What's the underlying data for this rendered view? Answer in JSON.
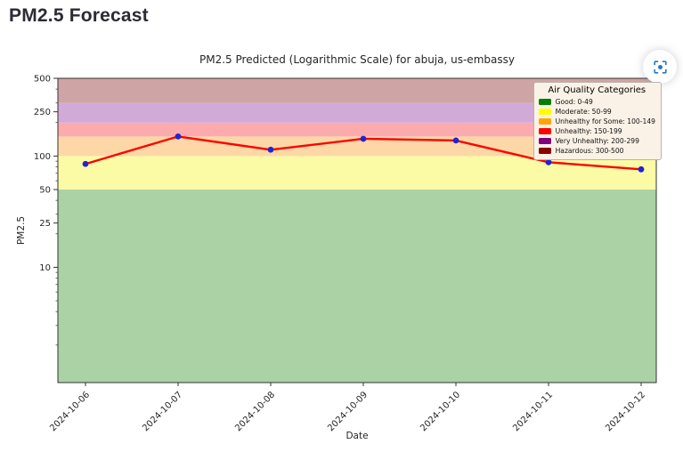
{
  "page": {
    "heading": "PM2.5 Forecast"
  },
  "controls": {
    "fullscreen_button": "focus-view",
    "icon_color": "#2878be"
  },
  "chart_data": {
    "type": "line",
    "title": "PM2.5 Predicted (Logarithmic Scale) for abuja, us-embassy",
    "xlabel": "Date",
    "ylabel": "PM2.5",
    "yscale": "log",
    "ylim": [
      0.92,
      500
    ],
    "yticks": [
      500,
      250,
      100,
      50,
      25,
      10
    ],
    "grid": false,
    "categories": [
      "2024-10-06",
      "2024-10-07",
      "2024-10-08",
      "2024-10-09",
      "2024-10-10",
      "2024-10-11",
      "2024-10-12"
    ],
    "series": [
      {
        "name": "PM2.5 predicted",
        "values": [
          85,
          150,
          114,
          143,
          138,
          88,
          76
        ],
        "line_color": "#ff0000",
        "marker_color": "#2424cf"
      }
    ],
    "bands": [
      {
        "label": "Good",
        "from": 0.92,
        "to": 50,
        "fill": "#aad2a5"
      },
      {
        "label": "Moderate",
        "from": 50,
        "to": 100,
        "fill": "#fbfba6"
      },
      {
        "label": "Unhealthy for Some",
        "from": 100,
        "to": 150,
        "fill": "#fdd8a6"
      },
      {
        "label": "Unhealthy",
        "from": 150,
        "to": 200,
        "fill": "#fbabad"
      },
      {
        "label": "Very Unhealthy",
        "from": 200,
        "to": 300,
        "fill": "#d2aad8"
      },
      {
        "label": "Hazardous",
        "from": 300,
        "to": 500,
        "fill": "#cfa4a5"
      }
    ],
    "legend": {
      "title": "Air Quality Categories",
      "position": "upper right",
      "entries": [
        {
          "label": "Good: 0-49",
          "swatch": "#008000"
        },
        {
          "label": "Moderate: 50-99",
          "swatch": "#ffff00"
        },
        {
          "label": "Unhealthy for Some: 100-149",
          "swatch": "#ffa500"
        },
        {
          "label": "Unhealthy: 150-199",
          "swatch": "#ff0000"
        },
        {
          "label": "Very Unhealthy: 200-299",
          "swatch": "#800080"
        },
        {
          "label": "Hazardous: 300-500",
          "swatch": "#8b0000"
        }
      ]
    }
  }
}
